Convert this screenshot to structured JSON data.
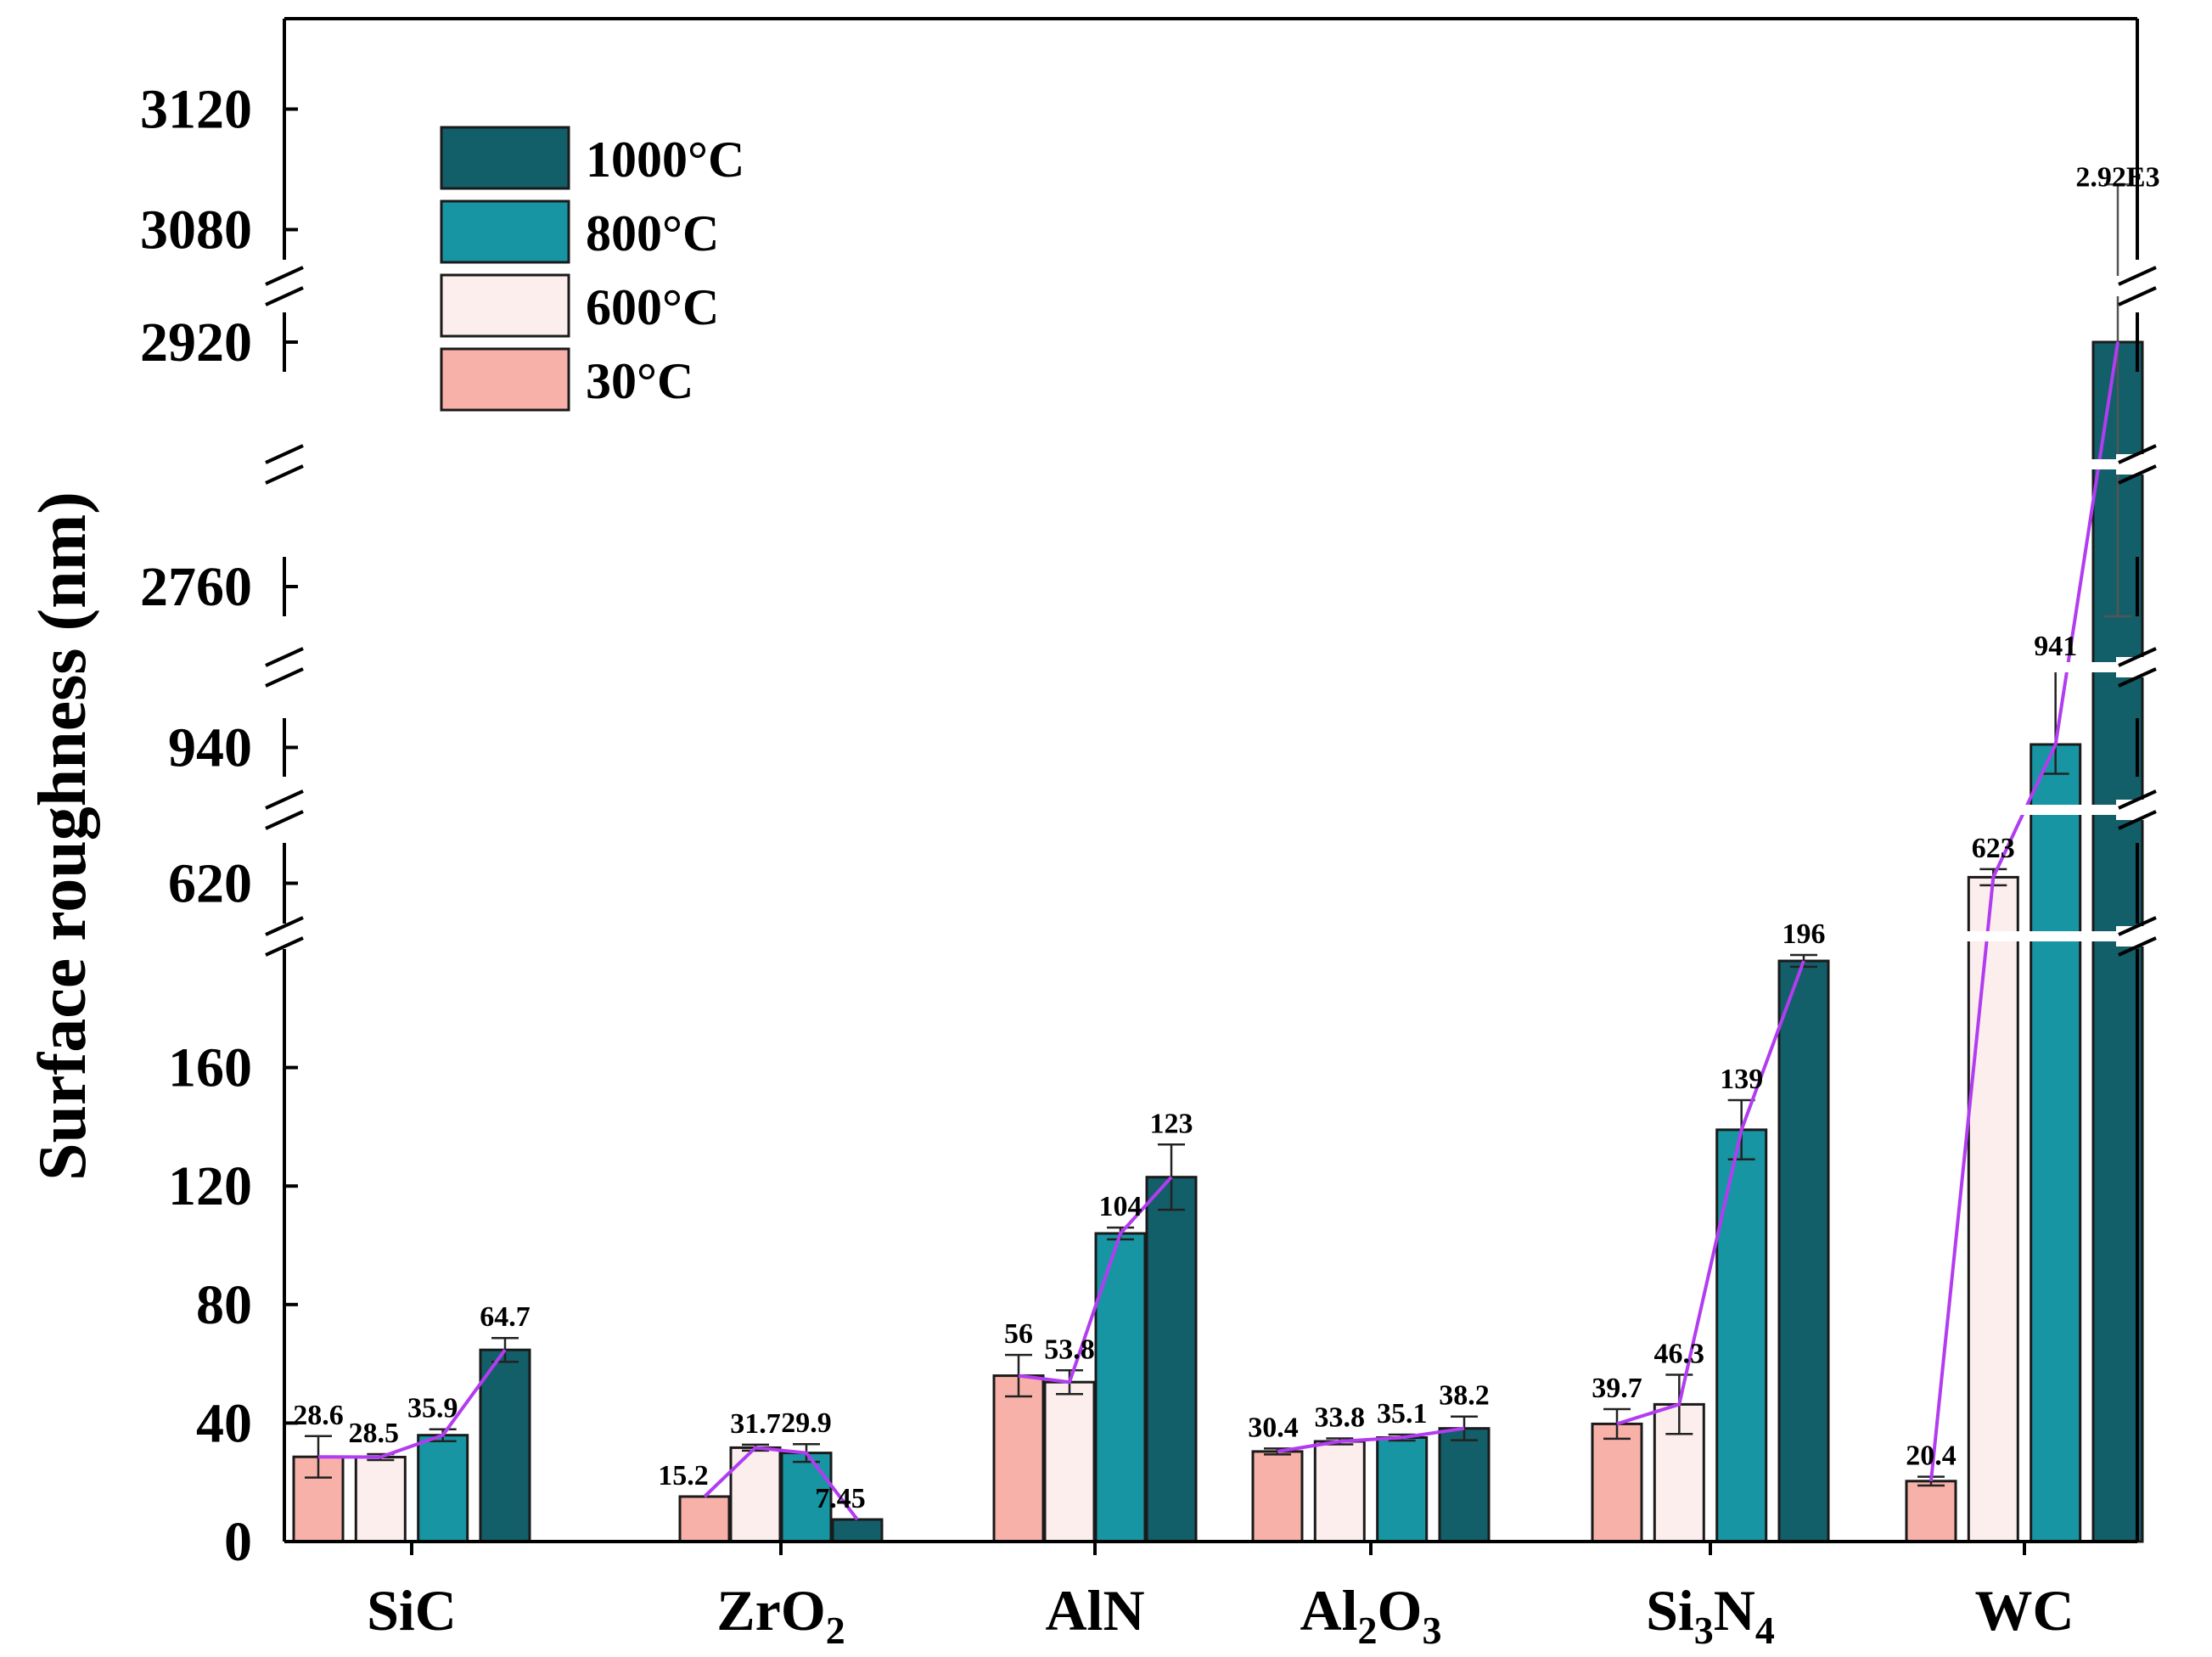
{
  "chart_data": {
    "type": "bar",
    "title": "",
    "xlabel": "",
    "ylabel": "Surface roughness (nm)",
    "axis_breaks": [
      [
        200,
        600
      ],
      [
        640,
        930
      ],
      [
        950,
        2750
      ],
      [
        2770,
        2910
      ],
      [
        2930,
        3070
      ]
    ],
    "ylim": [
      0,
      3150
    ],
    "y_ticks": [
      {
        "value": 0,
        "label": "0"
      },
      {
        "value": 40,
        "label": "40"
      },
      {
        "value": 80,
        "label": "80"
      },
      {
        "value": 120,
        "label": "120"
      },
      {
        "value": 160,
        "label": "160"
      },
      {
        "value": 620,
        "label": "620"
      },
      {
        "value": 940,
        "label": "940"
      },
      {
        "value": 2760,
        "label": "2760"
      },
      {
        "value": 2920,
        "label": "2920"
      },
      {
        "value": 3080,
        "label": "3080"
      },
      {
        "value": 3120,
        "label": "3120"
      }
    ],
    "categories": [
      {
        "main": "SiC",
        "parts": [
          {
            "text": "SiC",
            "sub": false
          }
        ]
      },
      {
        "main": "ZrO2",
        "parts": [
          {
            "text": "ZrO",
            "sub": false
          },
          {
            "text": "2",
            "sub": true
          }
        ]
      },
      {
        "main": "AlN",
        "parts": [
          {
            "text": "AlN",
            "sub": false
          }
        ]
      },
      {
        "main": "Al2O3",
        "parts": [
          {
            "text": "Al",
            "sub": false
          },
          {
            "text": "2",
            "sub": true
          },
          {
            "text": "O",
            "sub": false
          },
          {
            "text": "3",
            "sub": true
          }
        ]
      },
      {
        "main": "Si3N4",
        "parts": [
          {
            "text": "Si",
            "sub": false
          },
          {
            "text": "3",
            "sub": true
          },
          {
            "text": "N",
            "sub": false
          },
          {
            "text": "4",
            "sub": true
          }
        ]
      },
      {
        "main": "WC",
        "parts": [
          {
            "text": "WC",
            "sub": false
          }
        ]
      }
    ],
    "series": [
      {
        "name": "30°C",
        "color": "#f8b1a8",
        "values": [
          28.6,
          15.2,
          56,
          30.4,
          39.7,
          20.4
        ],
        "labels": [
          "28.6",
          "15.2",
          "56",
          "30.4",
          "39.7",
          "20.4"
        ],
        "errors": [
          7,
          0,
          7,
          1,
          5,
          1.5
        ]
      },
      {
        "name": "600°C",
        "color": "#fbeeed",
        "values": [
          28.5,
          31.7,
          53.8,
          33.8,
          46.3,
          623
        ],
        "labels": [
          "28.5",
          "31.7",
          "53.8",
          "33.8",
          "46.3",
          "623"
        ],
        "errors": [
          1,
          1,
          4,
          1,
          10,
          4
        ]
      },
      {
        "name": "800°C",
        "color": "#1795a3",
        "values": [
          35.9,
          29.9,
          104,
          35.1,
          139,
          941
        ],
        "labels": [
          "35.9",
          "29.9",
          "104",
          "35.1",
          "139",
          "941"
        ],
        "errors": [
          2,
          3,
          2,
          1,
          10,
          10
        ]
      },
      {
        "name": "1000°C",
        "color": "#125e69",
        "values": [
          64.7,
          7.45,
          123,
          38.2,
          196,
          2920
        ],
        "labels": [
          "64.7",
          "7.45",
          "123",
          "38.2",
          "196",
          "2.92E3"
        ],
        "errors": [
          4,
          0,
          11,
          4,
          2,
          170
        ]
      }
    ],
    "trend_line_color": "#b23cf0",
    "legend": {
      "placement": "top-left",
      "order": [
        "1000°C",
        "800°C",
        "600°C",
        "30°C"
      ]
    }
  }
}
